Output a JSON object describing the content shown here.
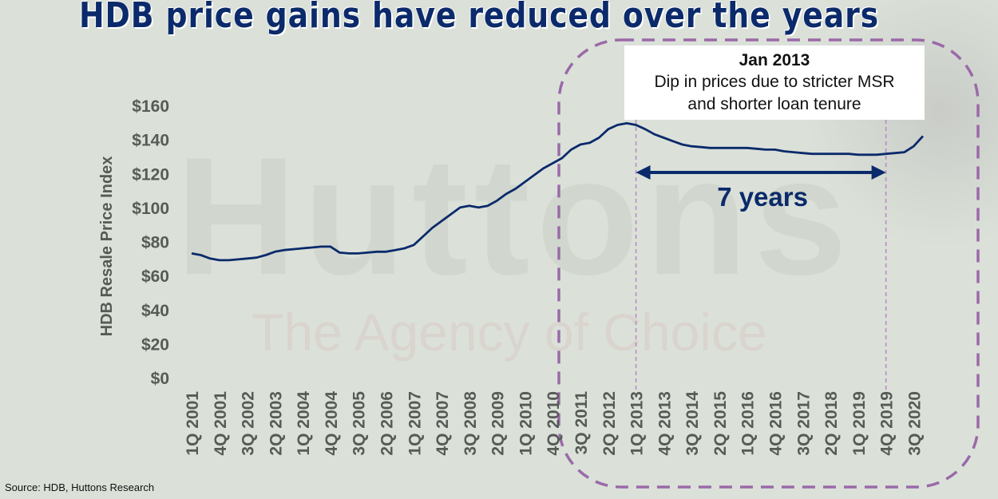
{
  "title": "HDB price gains have reduced over the years",
  "watermark": {
    "name": "Huttons",
    "tagline": "The Agency of Choice"
  },
  "annotation": {
    "title": "Jan 2013",
    "lines": [
      "Dip in prices due to stricter MSR",
      "and shorter loan tenure"
    ]
  },
  "span_label": "7 years",
  "source": "Source: HDB, Huttons Research",
  "colors": {
    "line": "#0b2a6b",
    "highlight_border": "#9a6aa8",
    "arrow": "#0b2a6b",
    "background": "#dbe1d9"
  },
  "chart_data": {
    "type": "line",
    "title": "HDB price gains have reduced over the years",
    "xlabel": "",
    "ylabel": "HDB Resale Price Index",
    "ylim": [
      0,
      160
    ],
    "yticks": [
      0,
      20,
      40,
      60,
      80,
      100,
      120,
      140,
      160
    ],
    "ytick_labels": [
      "$0",
      "$20",
      "$40",
      "$60",
      "$80",
      "$100",
      "$120",
      "$140",
      "$160"
    ],
    "grid": false,
    "tick_labels": [
      "1Q 2001",
      "4Q 2001",
      "3Q 2002",
      "2Q 2003",
      "1Q 2004",
      "4Q 2004",
      "3Q 2005",
      "2Q 2006",
      "1Q 2007",
      "4Q 2007",
      "3Q 2008",
      "2Q 2009",
      "1Q 2010",
      "4Q 2010",
      "3Q 2011",
      "2Q 2012",
      "1Q 2013",
      "4Q 2013",
      "3Q 2014",
      "2Q 2015",
      "1Q 2016",
      "4Q 2016",
      "3Q 2017",
      "2Q 2018",
      "1Q 2019",
      "4Q 2019",
      "3Q 2020"
    ],
    "categories": [
      "1Q 2001",
      "2Q 2001",
      "3Q 2001",
      "4Q 2001",
      "1Q 2002",
      "2Q 2002",
      "3Q 2002",
      "4Q 2002",
      "1Q 2003",
      "2Q 2003",
      "3Q 2003",
      "4Q 2003",
      "1Q 2004",
      "2Q 2004",
      "3Q 2004",
      "4Q 2004",
      "1Q 2005",
      "2Q 2005",
      "3Q 2005",
      "4Q 2005",
      "1Q 2006",
      "2Q 2006",
      "3Q 2006",
      "4Q 2006",
      "1Q 2007",
      "2Q 2007",
      "3Q 2007",
      "4Q 2007",
      "1Q 2008",
      "2Q 2008",
      "3Q 2008",
      "4Q 2008",
      "1Q 2009",
      "2Q 2009",
      "3Q 2009",
      "4Q 2009",
      "1Q 2010",
      "2Q 2010",
      "3Q 2010",
      "4Q 2010",
      "1Q 2011",
      "2Q 2011",
      "3Q 2011",
      "4Q 2011",
      "1Q 2012",
      "2Q 2012",
      "3Q 2012",
      "4Q 2012",
      "1Q 2013",
      "2Q 2013",
      "3Q 2013",
      "4Q 2013",
      "1Q 2014",
      "2Q 2014",
      "3Q 2014",
      "4Q 2014",
      "1Q 2015",
      "2Q 2015",
      "3Q 2015",
      "4Q 2015",
      "1Q 2016",
      "2Q 2016",
      "3Q 2016",
      "4Q 2016",
      "1Q 2017",
      "2Q 2017",
      "3Q 2017",
      "4Q 2017",
      "1Q 2018",
      "2Q 2018",
      "3Q 2018",
      "4Q 2018",
      "1Q 2019",
      "2Q 2019",
      "3Q 2019",
      "4Q 2019",
      "1Q 2020",
      "2Q 2020",
      "3Q 2020",
      "4Q 2020"
    ],
    "series": [
      {
        "values": [
          73,
          72,
          70,
          69,
          69,
          69.5,
          70,
          70.5,
          72,
          74,
          75,
          75.5,
          76,
          76.5,
          77,
          77,
          73.5,
          73,
          73,
          73.5,
          74,
          74,
          75,
          76,
          78,
          83,
          88,
          92,
          96,
          100,
          101,
          100,
          101,
          104,
          108,
          111,
          115,
          119,
          123,
          126,
          129,
          134,
          137,
          138,
          141,
          146,
          148.5,
          149.5,
          148.5,
          146,
          143,
          141,
          139,
          137,
          136,
          135.5,
          135,
          135,
          135,
          135,
          135,
          134.5,
          134,
          134,
          133,
          132.5,
          132,
          131.5,
          131.5,
          131.5,
          131.5,
          131.5,
          131,
          131,
          131,
          131.5,
          132,
          132.5,
          136,
          142
        ]
      }
    ],
    "highlight": {
      "from": "1Q 2013",
      "to": "4Q 2019"
    }
  }
}
